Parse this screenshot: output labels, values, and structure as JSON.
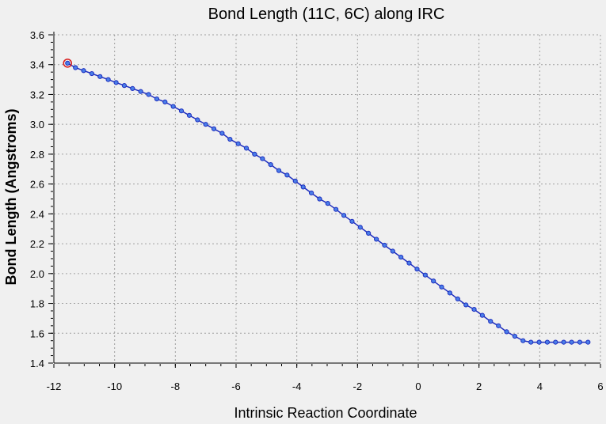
{
  "chart_data": {
    "type": "line",
    "title": "Bond Length (11C, 6C) along IRC",
    "xlabel": "Intrinsic Reaction Coordinate",
    "ylabel": "Bond Length (Angstroms)",
    "xlim": [
      -12,
      6
    ],
    "ylim": [
      1.4,
      3.6
    ],
    "xticks": [
      -12,
      -10,
      -8,
      -6,
      -4,
      -2,
      0,
      2,
      4,
      6
    ],
    "yticks": [
      1.4,
      1.6,
      1.8,
      2.0,
      2.2,
      2.4,
      2.6,
      2.8,
      3.0,
      3.2,
      3.4,
      3.6
    ],
    "xtick_labels": [
      "-12",
      "-10",
      "-8",
      "-6",
      "-4",
      "-2",
      "0",
      "2",
      "4",
      "6"
    ],
    "ytick_labels": [
      "1.4",
      "1.6",
      "1.8",
      "2.0",
      "2.2",
      "2.4",
      "2.6",
      "2.8",
      "3.0",
      "3.2",
      "3.4",
      "3.6"
    ],
    "grid": true,
    "colors": {
      "line": "#1f2fbf",
      "marker_fill": "#4a7ee8",
      "highlight": "#d81a1a",
      "background": "#f0f0f0",
      "grid": "#a0a0a0"
    },
    "highlighted_point_index": 0,
    "series": [
      {
        "x": [
          -11.55,
          -11.29,
          -11.02,
          -10.75,
          -10.48,
          -10.21,
          -9.95,
          -9.68,
          -9.41,
          -9.14,
          -8.88,
          -8.61,
          -8.34,
          -8.07,
          -7.8,
          -7.54,
          -7.27,
          -7.0,
          -6.73,
          -6.46,
          -6.2,
          -5.93,
          -5.66,
          -5.39,
          -5.13,
          -4.86,
          -4.59,
          -4.32,
          -4.05,
          -3.79,
          -3.52,
          -3.25,
          -2.98,
          -2.71,
          -2.45,
          -2.18,
          -1.91,
          -1.64,
          -1.38,
          -1.11,
          -0.84,
          -0.57,
          -0.3,
          -0.04,
          0.23,
          0.5,
          0.77,
          1.04,
          1.3,
          1.57,
          1.84,
          2.11,
          2.38,
          2.64,
          2.91,
          3.18,
          3.45,
          3.71,
          3.98,
          4.25,
          4.52,
          4.79,
          5.05,
          5.32,
          5.59
        ],
        "y": [
          3.41,
          3.38,
          3.36,
          3.34,
          3.32,
          3.3,
          3.28,
          3.26,
          3.24,
          3.22,
          3.2,
          3.17,
          3.15,
          3.12,
          3.09,
          3.06,
          3.03,
          3.0,
          2.97,
          2.94,
          2.9,
          2.87,
          2.84,
          2.8,
          2.77,
          2.73,
          2.69,
          2.66,
          2.62,
          2.58,
          2.54,
          2.5,
          2.47,
          2.43,
          2.39,
          2.35,
          2.31,
          2.27,
          2.23,
          2.19,
          2.15,
          2.11,
          2.07,
          2.03,
          1.99,
          1.95,
          1.91,
          1.87,
          1.83,
          1.79,
          1.76,
          1.72,
          1.68,
          1.65,
          1.61,
          1.58,
          1.55,
          1.54,
          1.54,
          1.54,
          1.54,
          1.54,
          1.54,
          1.54,
          1.54
        ]
      }
    ]
  }
}
